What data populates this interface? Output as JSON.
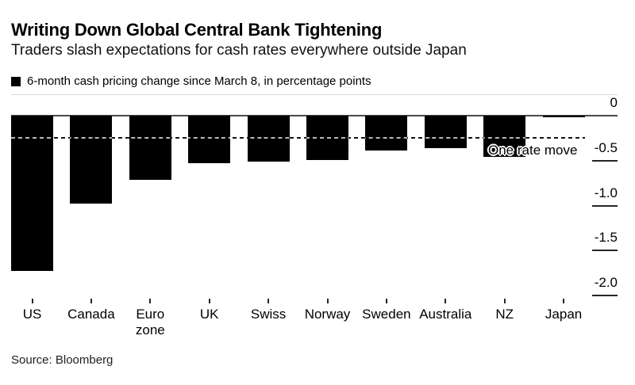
{
  "header": {
    "title": "Writing Down Global Central Bank Tightening",
    "subtitle": "Traders slash expectations for cash rates everywhere outside Japan",
    "legend_label": "6-month cash pricing change since March 8, in percentage points"
  },
  "chart_data": {
    "type": "bar",
    "title": "Writing Down Global Central Bank Tightening",
    "subtitle": "Traders slash expectations for cash rates everywhere outside Japan",
    "legend": "6-month cash pricing change since March 8, in percentage points",
    "legend_position": "top-left",
    "categories": [
      "US",
      "Canada",
      "Euro zone",
      "UK",
      "Swiss",
      "Norway",
      "Sweden",
      "Australia",
      "NZ",
      "Japan"
    ],
    "values": [
      -1.73,
      -0.98,
      -0.71,
      -0.53,
      -0.51,
      -0.49,
      -0.39,
      -0.36,
      -0.46,
      -0.02
    ],
    "xlabel": "",
    "ylabel": "",
    "ylim": [
      -2.25,
      0
    ],
    "yticks": [
      0,
      -0.5,
      -1.0,
      -1.5,
      -2.0
    ],
    "ytick_labels": [
      "0",
      "-0.5",
      "-1.0",
      "-1.5",
      "-2.0"
    ],
    "grid": false,
    "bar_color": "#000000",
    "background_color": "#ffffff",
    "reference_line": {
      "value": -0.25,
      "label": "One rate move",
      "style": "dashed",
      "color": "#141414"
    }
  },
  "footer": {
    "source": "Source: Bloomberg"
  }
}
